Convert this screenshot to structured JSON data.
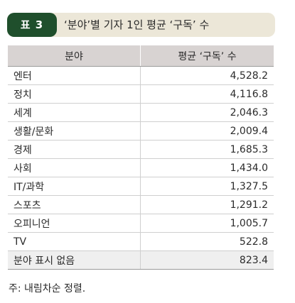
{
  "header": {
    "badge": "표 3",
    "title": "‘분야’별 기자 1인 평균 ‘구독’ 수"
  },
  "table": {
    "columns": [
      "분야",
      "평균 ‘구독’ 수"
    ],
    "rows": [
      {
        "category": "엔터",
        "value": "4,528.2"
      },
      {
        "category": "정치",
        "value": "4,116.8"
      },
      {
        "category": "세계",
        "value": "2,046.3"
      },
      {
        "category": "생활/문화",
        "value": "2,009.4"
      },
      {
        "category": "경제",
        "value": "1,685.3"
      },
      {
        "category": "사회",
        "value": "1,434.0"
      },
      {
        "category": "IT/과학",
        "value": "1,327.5"
      },
      {
        "category": "스포츠",
        "value": "1,291.2"
      },
      {
        "category": "오피니언",
        "value": "1,005.7"
      },
      {
        "category": "TV",
        "value": "522.8"
      },
      {
        "category": "분야 표시 없음",
        "value": "823.4"
      }
    ]
  },
  "note": "주: 내림차순 정렬."
}
